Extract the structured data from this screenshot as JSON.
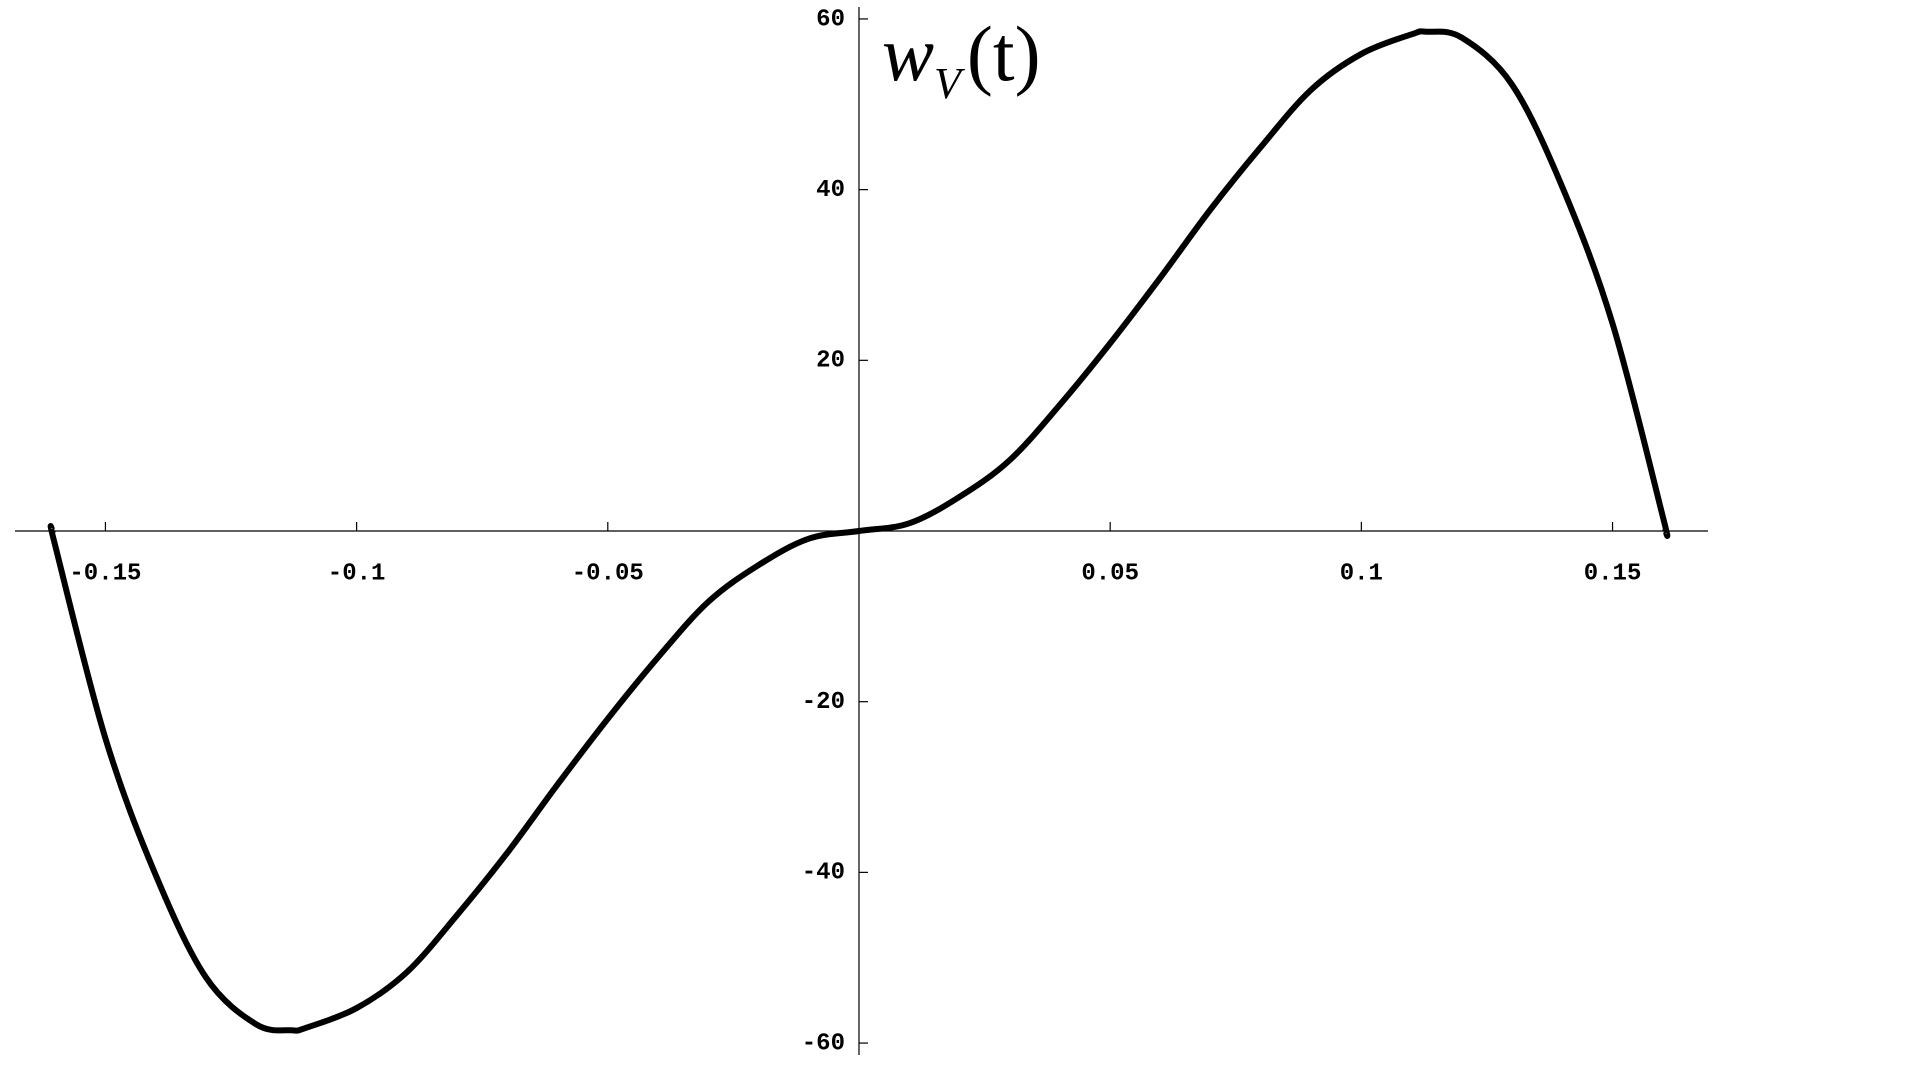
{
  "chart_data": {
    "type": "line",
    "ylabel": {
      "main": "w",
      "sub": "V",
      "arg": "(t)"
    },
    "x": [
      -0.1605,
      -0.16,
      -0.15,
      -0.14,
      -0.13,
      -0.12,
      -0.113,
      -0.11,
      -0.1,
      -0.09,
      -0.08,
      -0.07,
      -0.06,
      -0.05,
      -0.04,
      -0.03,
      -0.02,
      -0.01,
      0,
      0.01,
      0.02,
      0.03,
      0.04,
      0.05,
      0.06,
      0.07,
      0.08,
      0.09,
      0.1,
      0.11,
      0.113,
      0.12,
      0.13,
      0.14,
      0.15,
      0.16,
      0.1605
    ],
    "series": [
      {
        "color": "#000000",
        "values": [
          0,
          -1.7,
          -24.3,
          -40.3,
          -52.3,
          -57.8,
          -58.5,
          -58.2,
          -55.9,
          -51.7,
          -45,
          -37.7,
          -29.7,
          -22,
          -14.8,
          -8.3,
          -4,
          -0.9,
          0,
          0.9,
          4,
          8.3,
          14.8,
          22,
          29.7,
          37.7,
          45,
          51.7,
          55.9,
          58.2,
          58.5,
          57.8,
          52.3,
          40.3,
          24.3,
          1.7,
          0
        ]
      }
    ],
    "xlim": [
      -0.168,
      0.169
    ],
    "ylim": [
      -61.4,
      61.4
    ],
    "xticks": [
      -0.15,
      -0.1,
      -0.05,
      0.05,
      0.1,
      0.15
    ],
    "yticks": [
      -60,
      -40,
      -20,
      20,
      40,
      60
    ]
  }
}
